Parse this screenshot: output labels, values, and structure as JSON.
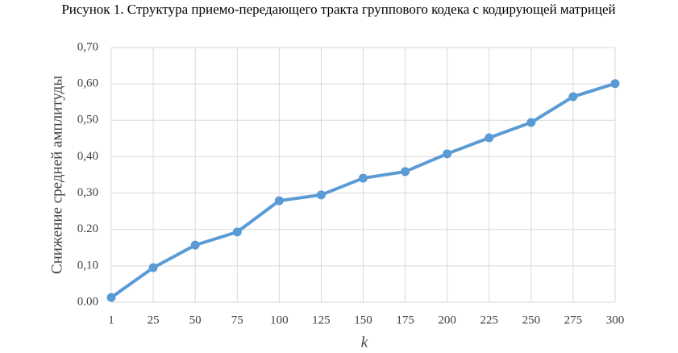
{
  "chart_data": {
    "type": "line",
    "title": "Рисунок 1. Структура приемо-передающего тракта группового кодека с кодирующей матрицей",
    "y_label": "Снижение средней амплитуды",
    "x_label": "k",
    "categories": [
      "1",
      "25",
      "50",
      "75",
      "100",
      "125",
      "150",
      "175",
      "200",
      "225",
      "250",
      "275",
      "300"
    ],
    "series": [
      {
        "name": "Снижение средней амплитуды",
        "color": "#5b9bd5",
        "values": [
          0.013,
          0.095,
          0.157,
          0.193,
          0.279,
          0.295,
          0.341,
          0.359,
          0.408,
          0.452,
          0.494,
          0.565,
          0.601
        ]
      }
    ],
    "ylim": [
      0,
      0.7
    ],
    "yticks": [
      {
        "value": 0,
        "label": "0.00"
      },
      {
        "value": 0.1,
        "label": "0,10"
      },
      {
        "value": 0.2,
        "label": "0.20"
      },
      {
        "value": 0.3,
        "label": "0,30"
      },
      {
        "value": 0.4,
        "label": "0,40"
      },
      {
        "value": 0.5,
        "label": "0,50"
      },
      {
        "value": 0.6,
        "label": "0,60"
      },
      {
        "value": 0.7,
        "label": "0,70"
      }
    ],
    "grid": true
  }
}
